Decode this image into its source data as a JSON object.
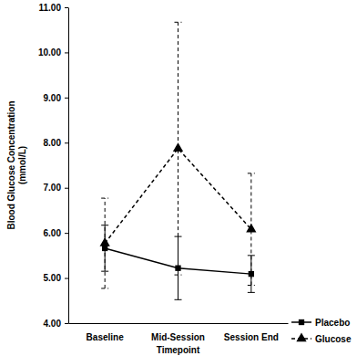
{
  "chart_data": {
    "type": "line",
    "x_label": "Timepoint",
    "y_label": "Blood Glucose Concentration (mmol/L)",
    "categories": [
      "Baseline",
      "Mid-Session",
      "Session End"
    ],
    "series": [
      {
        "name": "Placebo",
        "color": "#000000",
        "line_style": "solid",
        "marker": "square",
        "values": [
          5.66,
          5.22,
          5.09
        ],
        "errors": [
          0.51,
          0.7,
          0.41
        ]
      },
      {
        "name": "Glucose",
        "color": "#000000",
        "line_style": "dashed",
        "marker": "triangle",
        "values": [
          5.77,
          7.87,
          6.08
        ],
        "errors": [
          1.0,
          2.8,
          1.24
        ]
      }
    ],
    "ylim": [
      4,
      11
    ],
    "yticks": [
      {
        "value": 4,
        "label": "4.00"
      },
      {
        "value": 5,
        "label": "5.00"
      },
      {
        "value": 6,
        "label": "6.00"
      },
      {
        "value": 7,
        "label": "7.00"
      },
      {
        "value": 8,
        "label": "8.00"
      },
      {
        "value": 9,
        "label": "9.00"
      },
      {
        "value": 10,
        "label": "10.00"
      },
      {
        "value": 11,
        "label": "11.00"
      }
    ],
    "grid": false,
    "legend": "bottom-right"
  }
}
